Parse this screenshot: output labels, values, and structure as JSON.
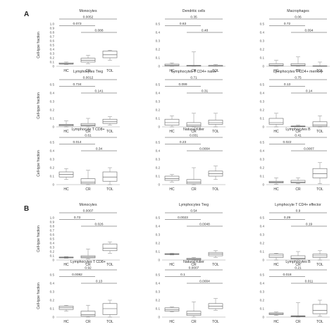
{
  "figure": {
    "panel_labels": [
      "A",
      "B"
    ],
    "y_axis_label": "Cell-type fraction",
    "x_categories": [
      "HC",
      "CR",
      "TOL"
    ]
  },
  "chart_data": [
    {
      "panel": "A",
      "type": "box",
      "title": "Monocytes",
      "categories": [
        "HC",
        "CR",
        "TOL"
      ],
      "ylim": [
        0,
        1
      ],
      "yticks": [
        "0",
        "0.1",
        "0.2",
        "0.3",
        "0.4",
        "0.5",
        "0.6",
        "0.7",
        "0.8",
        "0.9",
        "1.0"
      ],
      "boxes": [
        {
          "min": 0.04,
          "q1": 0.05,
          "median": 0.06,
          "q3": 0.08,
          "max": 0.1
        },
        {
          "min": 0.06,
          "q1": 0.1,
          "median": 0.14,
          "q3": 0.19,
          "max": 0.26
        },
        {
          "min": 0.14,
          "q1": 0.2,
          "median": 0.27,
          "q3": 0.36,
          "max": 0.38
        }
      ],
      "pvalues": [
        {
          "pair": "HC-TOL",
          "label": "0.0052"
        },
        {
          "pair": "HC-CR",
          "label": "0.073"
        },
        {
          "pair": "CR-TOL",
          "label": "0.088"
        }
      ]
    },
    {
      "panel": "A",
      "type": "box",
      "title": "Dendritic cells",
      "categories": [
        "HC",
        "CR",
        "TOL"
      ],
      "ylim": [
        0,
        0.5
      ],
      "yticks": [
        "0",
        "0.1",
        "0.2",
        "0.3",
        "0.4",
        "0.5"
      ],
      "boxes": [
        {
          "min": 0.0,
          "q1": 0.005,
          "median": 0.01,
          "q3": 0.025,
          "max": 0.04
        },
        {
          "min": 0.0,
          "q1": 0.002,
          "median": 0.005,
          "q3": 0.01,
          "max": 0.17
        },
        {
          "min": 0.0,
          "q1": 0.001,
          "median": 0.003,
          "q3": 0.01,
          "max": 0.02
        }
      ],
      "pvalues": [
        {
          "pair": "HC-TOL",
          "label": "0.35"
        },
        {
          "pair": "HC-CR",
          "label": "0.63"
        },
        {
          "pair": "CR-TOL",
          "label": "0.48"
        }
      ]
    },
    {
      "panel": "A",
      "type": "box",
      "title": "Macrophages",
      "categories": [
        "HC",
        "CR",
        "TOL"
      ],
      "ylim": [
        0,
        0.5
      ],
      "yticks": [
        "0",
        "0.1",
        "0.2",
        "0.3",
        "0.4",
        "0.5"
      ],
      "boxes": [
        {
          "min": 0.0,
          "q1": 0.005,
          "median": 0.01,
          "q3": 0.03,
          "max": 0.07
        },
        {
          "min": 0.0,
          "q1": 0.005,
          "median": 0.01,
          "q3": 0.03,
          "max": 0.11
        },
        {
          "min": 0.0,
          "q1": 0.001,
          "median": 0.002,
          "q3": 0.005,
          "max": 0.05
        }
      ],
      "pvalues": [
        {
          "pair": "HC-TOL",
          "label": "0.06"
        },
        {
          "pair": "HC-CR",
          "label": "0.72"
        },
        {
          "pair": "CR-TOL",
          "label": "0.094"
        }
      ]
    },
    {
      "panel": "A",
      "type": "box",
      "title": "Lymphocytes Treg",
      "categories": [
        "HC",
        "CR",
        "TOL"
      ],
      "ylim": [
        0,
        0.5
      ],
      "yticks": [
        "0",
        "0.1",
        "0.2",
        "0.3",
        "0.4",
        "0.5"
      ],
      "boxes": [
        {
          "min": 0.0,
          "q1": 0.01,
          "median": 0.02,
          "q3": 0.03,
          "max": 0.07
        },
        {
          "min": 0.0,
          "q1": 0.01,
          "median": 0.02,
          "q3": 0.04,
          "max": 0.1
        },
        {
          "min": 0.02,
          "q1": 0.04,
          "median": 0.06,
          "q3": 0.09,
          "max": 0.12
        }
      ],
      "pvalues": [
        {
          "pair": "HC-TOL",
          "label": "0.0012"
        },
        {
          "pair": "HC-CR",
          "label": "0.734"
        },
        {
          "pair": "CR-TOL",
          "label": "0.141"
        }
      ]
    },
    {
      "panel": "A",
      "type": "box",
      "title": "Lymphocytes T CD4+ naive",
      "categories": [
        "HC",
        "CR",
        "TOL"
      ],
      "ylim": [
        0,
        0.5
      ],
      "yticks": [
        "0",
        "0.1",
        "0.2",
        "0.3",
        "0.4",
        "0.5"
      ],
      "boxes": [
        {
          "min": 0.0,
          "q1": 0.02,
          "median": 0.05,
          "q3": 0.09,
          "max": 0.13
        },
        {
          "min": 0.0,
          "q1": 0.005,
          "median": 0.02,
          "q3": 0.05,
          "max": 0.16
        },
        {
          "min": 0.0,
          "q1": 0.03,
          "median": 0.05,
          "q3": 0.08,
          "max": 0.16
        }
      ],
      "pvalues": [
        {
          "pair": "HC-TOL",
          "label": "0.71"
        },
        {
          "pair": "HC-CR",
          "label": "0.099"
        },
        {
          "pair": "CR-TOL",
          "label": "0.31"
        }
      ]
    },
    {
      "panel": "A",
      "type": "box",
      "title": "Lymphocytes T CD4+ memory",
      "categories": [
        "HC",
        "CR",
        "TOL"
      ],
      "ylim": [
        0,
        0.5
      ],
      "yticks": [
        "0",
        "0.1",
        "0.2",
        "0.3",
        "0.4",
        "0.5"
      ],
      "boxes": [
        {
          "min": 0.0,
          "q1": 0.03,
          "median": 0.05,
          "q3": 0.1,
          "max": 0.16
        },
        {
          "min": 0.0,
          "q1": 0.002,
          "median": 0.005,
          "q3": 0.01,
          "max": 0.02
        },
        {
          "min": 0.0,
          "q1": 0.005,
          "median": 0.02,
          "q3": 0.06,
          "max": 0.13
        }
      ],
      "pvalues": [
        {
          "pair": "HC-TOL",
          "label": "0.75"
        },
        {
          "pair": "HC-CR",
          "label": "0.13"
        },
        {
          "pair": "CR-TOL",
          "label": "0.14"
        }
      ]
    },
    {
      "panel": "A",
      "type": "box",
      "title": "Lymphocyte T CD8+",
      "categories": [
        "HC",
        "CR",
        "TOL"
      ],
      "ylim": [
        0,
        0.5
      ],
      "yticks": [
        "0",
        "0.1",
        "0.2",
        "0.3",
        "0.4",
        "0.5"
      ],
      "boxes": [
        {
          "min": 0.06,
          "q1": 0.09,
          "median": 0.12,
          "q3": 0.15,
          "max": 0.19
        },
        {
          "min": 0.0,
          "q1": 0.01,
          "median": 0.03,
          "q3": 0.07,
          "max": 0.17
        },
        {
          "min": 0.0,
          "q1": 0.04,
          "median": 0.09,
          "q3": 0.15,
          "max": 0.2
        }
      ],
      "pvalues": [
        {
          "pair": "HC-TOL",
          "label": "0.61"
        },
        {
          "pair": "HC-CR",
          "label": "0.014"
        },
        {
          "pair": "CR-TOL",
          "label": "0.34"
        }
      ]
    },
    {
      "panel": "A",
      "type": "box",
      "title": "Natural Killer",
      "categories": [
        "HC",
        "CR",
        "TOL"
      ],
      "ylim": [
        0,
        0.5
      ],
      "yticks": [
        "0",
        "0.1",
        "0.2",
        "0.3",
        "0.4",
        "0.5"
      ],
      "boxes": [
        {
          "min": 0.03,
          "q1": 0.05,
          "median": 0.07,
          "q3": 0.1,
          "max": 0.12
        },
        {
          "min": 0.0,
          "q1": 0.01,
          "median": 0.03,
          "q3": 0.06,
          "max": 0.2
        },
        {
          "min": 0.06,
          "q1": 0.1,
          "median": 0.13,
          "q3": 0.16,
          "max": 0.22
        }
      ],
      "pvalues": [
        {
          "pair": "HC-TOL",
          "label": "0.031"
        },
        {
          "pair": "HC-CR",
          "label": "0.23"
        },
        {
          "pair": "CR-TOL",
          "label": "0.0004"
        }
      ]
    },
    {
      "panel": "A",
      "type": "box",
      "title": "Lymphocytes B",
      "categories": [
        "HC",
        "CR",
        "TOL"
      ],
      "ylim": [
        0,
        0.5
      ],
      "yticks": [
        "0",
        "0.1",
        "0.2",
        "0.3",
        "0.4",
        "0.5"
      ],
      "boxes": [
        {
          "min": 0.005,
          "q1": 0.02,
          "median": 0.03,
          "q3": 0.04,
          "max": 0.08
        },
        {
          "min": 0.01,
          "q1": 0.02,
          "median": 0.03,
          "q3": 0.05,
          "max": 0.08
        },
        {
          "min": 0.01,
          "q1": 0.08,
          "median": 0.13,
          "q3": 0.19,
          "max": 0.26
        }
      ],
      "pvalues": [
        {
          "pair": "HC-TOL",
          "label": "0.41"
        },
        {
          "pair": "HC-CR",
          "label": "0.022"
        },
        {
          "pair": "CR-TOL",
          "label": "0.0007"
        }
      ]
    },
    {
      "panel": "B",
      "type": "box",
      "title": "Monocytes",
      "categories": [
        "HC",
        "CR",
        "TOL"
      ],
      "ylim": [
        0,
        1
      ],
      "yticks": [
        "0",
        "0.1",
        "0.2",
        "0.3",
        "0.4",
        "0.5",
        "0.6",
        "0.7",
        "0.8",
        "0.9",
        "1.0"
      ],
      "boxes": [
        {
          "min": 0.04,
          "q1": 0.05,
          "median": 0.06,
          "q3": 0.07,
          "max": 0.08
        },
        {
          "min": 0.03,
          "q1": 0.05,
          "median": 0.07,
          "q3": 0.1,
          "max": 0.26
        },
        {
          "min": 0.16,
          "q1": 0.22,
          "median": 0.28,
          "q3": 0.38,
          "max": 0.43
        }
      ],
      "pvalues": [
        {
          "pair": "HC-TOL",
          "label": "0.0007"
        },
        {
          "pair": "HC-CR",
          "label": "0.73"
        },
        {
          "pair": "CR-TOL",
          "label": "0.026"
        }
      ]
    },
    {
      "panel": "B",
      "type": "box",
      "title": "Lymphocytes Treg",
      "categories": [
        "HC",
        "CR",
        "TOL"
      ],
      "ylim": [
        0,
        0.5
      ],
      "yticks": [
        "0",
        "0.1",
        "0.2",
        "0.3",
        "0.4",
        "0.5"
      ],
      "boxes": [
        {
          "min": 0.06,
          "q1": 0.065,
          "median": 0.07,
          "q3": 0.075,
          "max": 0.08
        },
        {
          "min": 0.0,
          "q1": 0.005,
          "median": 0.01,
          "q3": 0.02,
          "max": 0.03
        },
        {
          "min": 0.03,
          "q1": 0.05,
          "median": 0.07,
          "q3": 0.09,
          "max": 0.11
        }
      ],
      "pvalues": [
        {
          "pair": "HC-TOL",
          "label": "0.54"
        },
        {
          "pair": "HC-CR",
          "label": "0.0023"
        },
        {
          "pair": "CR-TOL",
          "label": "0.0048"
        }
      ]
    },
    {
      "panel": "B",
      "type": "box",
      "title": "Lymphocyte T CD4+ effector",
      "categories": [
        "HC",
        "CR",
        "TOL"
      ],
      "ylim": [
        0,
        0.5
      ],
      "yticks": [
        "0",
        "0.1",
        "0.2",
        "0.3",
        "0.4",
        "0.5"
      ],
      "boxes": [
        {
          "min": 0.0,
          "q1": 0.03,
          "median": 0.05,
          "q3": 0.07,
          "max": 0.08
        },
        {
          "min": 0.0,
          "q1": 0.01,
          "median": 0.02,
          "q3": 0.05,
          "max": 0.1
        },
        {
          "min": 0.0,
          "q1": 0.03,
          "median": 0.05,
          "q3": 0.07,
          "max": 0.11
        }
      ],
      "pvalues": [
        {
          "pair": "HC-TOL",
          "label": "0.9"
        },
        {
          "pair": "HC-CR",
          "label": "0.29"
        },
        {
          "pair": "CR-TOL",
          "label": "0.19"
        }
      ]
    },
    {
      "panel": "B",
      "type": "box",
      "title": "Lymphocytes T CD8+",
      "categories": [
        "HC",
        "CR",
        "TOL"
      ],
      "ylim": [
        0,
        0.5
      ],
      "yticks": [
        "0",
        "0.1",
        "0.2",
        "0.3",
        "0.4",
        "0.5"
      ],
      "boxes": [
        {
          "min": 0.07,
          "q1": 0.09,
          "median": 0.11,
          "q3": 0.13,
          "max": 0.14
        },
        {
          "min": 0.0,
          "q1": 0.01,
          "median": 0.03,
          "q3": 0.07,
          "max": 0.14
        },
        {
          "min": 0.0,
          "q1": 0.03,
          "median": 0.1,
          "q3": 0.16,
          "max": 0.2
        }
      ],
      "pvalues": [
        {
          "pair": "HC-TOL",
          "label": "0.92"
        },
        {
          "pair": "HC-CR",
          "label": "0.0082"
        },
        {
          "pair": "CR-TOL",
          "label": "0.13"
        }
      ]
    },
    {
      "panel": "B",
      "type": "box",
      "title": "Natural Killer",
      "categories": [
        "HC",
        "CR",
        "TOL"
      ],
      "ylim": [
        0,
        0.5
      ],
      "yticks": [
        "0",
        "0.1",
        "0.2",
        "0.3",
        "0.4",
        "0.5"
      ],
      "boxes": [
        {
          "min": 0.06,
          "q1": 0.07,
          "median": 0.09,
          "q3": 0.11,
          "max": 0.12
        },
        {
          "min": 0.0,
          "q1": 0.02,
          "median": 0.04,
          "q3": 0.07,
          "max": 0.18
        },
        {
          "min": 0.08,
          "q1": 0.1,
          "median": 0.13,
          "q3": 0.16,
          "max": 0.22
        }
      ],
      "pvalues": [
        {
          "pair": "HC-TOL",
          "label": "0.0007"
        },
        {
          "pair": "HC-CR",
          "label": "0.1"
        },
        {
          "pair": "CR-TOL",
          "label": "0.0004"
        }
      ]
    },
    {
      "panel": "B",
      "type": "box",
      "title": "Lymphocytes B",
      "categories": [
        "HC",
        "CR",
        "TOL"
      ],
      "ylim": [
        0,
        0.5
      ],
      "yticks": [
        "0",
        "0.1",
        "0.2",
        "0.3",
        "0.4",
        "0.5"
      ],
      "boxes": [
        {
          "min": 0.02,
          "q1": 0.03,
          "median": 0.04,
          "q3": 0.05,
          "max": 0.06
        },
        {
          "min": 0.0,
          "q1": 0.005,
          "median": 0.01,
          "q3": 0.015,
          "max": 0.17
        },
        {
          "min": 0.01,
          "q1": 0.04,
          "median": 0.08,
          "q3": 0.15,
          "max": 0.2
        }
      ],
      "pvalues": [
        {
          "pair": "HC-TOL",
          "label": "0.21"
        },
        {
          "pair": "HC-CR",
          "label": "0.018"
        },
        {
          "pair": "CR-TOL",
          "label": "0.011"
        }
      ]
    }
  ]
}
